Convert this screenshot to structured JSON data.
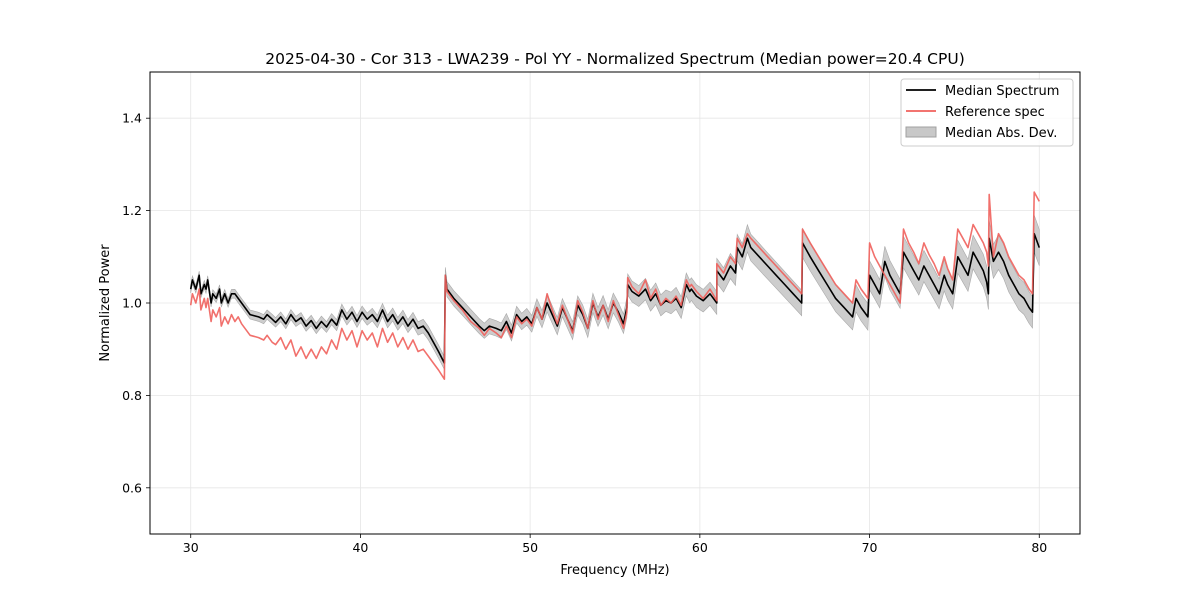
{
  "chart_data": {
    "type": "line",
    "title": "2025-04-30 - Cor 313 - LWA239 - Pol YY - Normalized Spectrum (Median power=20.4 CPU)",
    "xlabel": "Frequency (MHz)",
    "ylabel": "Normalized Power",
    "xlim": [
      27.6,
      82.4
    ],
    "ylim": [
      0.5,
      1.5
    ],
    "xticks": [
      30,
      40,
      50,
      60,
      70,
      80
    ],
    "xtick_labels": [
      "30",
      "40",
      "50",
      "60",
      "70",
      "80"
    ],
    "yticks": [
      0.6,
      0.8,
      1.0,
      1.2,
      1.4
    ],
    "ytick_labels": [
      "0.6",
      "0.8",
      "1.0",
      "1.2",
      "1.4"
    ],
    "grid": true,
    "legend": {
      "position": "top-right",
      "entries": [
        {
          "label": "Median Spectrum",
          "kind": "line",
          "color": "#000000"
        },
        {
          "label": "Reference spec",
          "kind": "line",
          "color": "#f0605c"
        },
        {
          "label": "Median Abs. Dev.",
          "kind": "patch",
          "color": "#c8c8c8"
        }
      ]
    },
    "series": [
      {
        "name": "Median Spectrum",
        "color": "#000000",
        "x": [
          30.0,
          30.1,
          30.3,
          30.5,
          30.6,
          30.8,
          30.9,
          31.0,
          31.2,
          31.3,
          31.5,
          31.7,
          31.8,
          32.0,
          32.2,
          32.4,
          32.6,
          32.8,
          33.0,
          33.5,
          34.0,
          34.3,
          34.5,
          34.8,
          35.0,
          35.3,
          35.6,
          35.9,
          36.2,
          36.5,
          36.8,
          37.1,
          37.4,
          37.7,
          38.0,
          38.3,
          38.6,
          38.9,
          39.2,
          39.5,
          39.8,
          40.1,
          40.4,
          40.7,
          41.0,
          41.3,
          41.6,
          41.9,
          42.2,
          42.5,
          42.8,
          43.1,
          43.4,
          43.7,
          44.0,
          44.3,
          44.6,
          44.95,
          45.0,
          45.1,
          45.5,
          46.0,
          46.5,
          47.0,
          47.3,
          47.6,
          48.0,
          48.3,
          48.6,
          48.9,
          49.2,
          49.5,
          49.8,
          50.1,
          50.4,
          50.7,
          51.0,
          51.3,
          51.6,
          51.9,
          52.2,
          52.5,
          52.8,
          53.1,
          53.4,
          53.7,
          54.0,
          54.3,
          54.6,
          54.9,
          55.2,
          55.5,
          55.7,
          55.75,
          56.0,
          56.4,
          56.8,
          57.1,
          57.4,
          57.7,
          58.0,
          58.3,
          58.6,
          58.9,
          59.2,
          59.4,
          59.5,
          59.8,
          60.2,
          60.6,
          61.0,
          61.0,
          61.4,
          61.8,
          62.1,
          62.2,
          62.5,
          62.8,
          63.0,
          63.5,
          64.0,
          64.5,
          65.0,
          65.5,
          66.0,
          66.05,
          66.5,
          67.0,
          67.5,
          68.0,
          68.5,
          69.0,
          69.2,
          69.5,
          69.9,
          70.0,
          70.3,
          70.6,
          70.9,
          71.2,
          71.5,
          71.8,
          72.0,
          72.3,
          72.6,
          72.9,
          73.2,
          73.5,
          73.8,
          74.1,
          74.4,
          74.6,
          74.9,
          75.2,
          75.5,
          75.8,
          76.1,
          76.4,
          76.7,
          76.9,
          77.0,
          77.05,
          77.3,
          77.6,
          77.9,
          78.2,
          78.5,
          78.8,
          79.1,
          79.4,
          79.6,
          79.7,
          80.0
        ],
        "y": [
          1.03,
          1.05,
          1.03,
          1.06,
          1.02,
          1.04,
          1.03,
          1.05,
          1.0,
          1.02,
          1.01,
          1.03,
          1.0,
          1.02,
          1.0,
          1.02,
          1.02,
          1.01,
          1.0,
          0.975,
          0.97,
          0.965,
          0.975,
          0.965,
          0.958,
          0.97,
          0.955,
          0.975,
          0.96,
          0.968,
          0.95,
          0.962,
          0.945,
          0.96,
          0.948,
          0.965,
          0.952,
          0.985,
          0.965,
          0.98,
          0.96,
          0.98,
          0.965,
          0.975,
          0.96,
          0.985,
          0.96,
          0.975,
          0.955,
          0.97,
          0.95,
          0.965,
          0.945,
          0.95,
          0.935,
          0.915,
          0.895,
          0.87,
          1.06,
          1.03,
          1.01,
          0.99,
          0.97,
          0.95,
          0.94,
          0.95,
          0.945,
          0.94,
          0.96,
          0.935,
          0.975,
          0.96,
          0.97,
          0.955,
          0.99,
          0.965,
          1.0,
          0.975,
          0.95,
          0.99,
          0.965,
          0.94,
          0.995,
          0.975,
          0.945,
          1.0,
          0.97,
          0.995,
          0.965,
          1.0,
          0.98,
          0.955,
          0.99,
          1.04,
          1.025,
          1.015,
          1.03,
          1.005,
          1.02,
          0.995,
          1.005,
          1.0,
          1.01,
          0.99,
          1.04,
          1.025,
          1.03,
          1.015,
          1.005,
          1.02,
          1.0,
          1.07,
          1.05,
          1.08,
          1.065,
          1.12,
          1.1,
          1.14,
          1.12,
          1.1,
          1.08,
          1.06,
          1.04,
          1.02,
          1.0,
          1.13,
          1.1,
          1.07,
          1.04,
          1.01,
          0.99,
          0.97,
          1.01,
          0.99,
          0.97,
          1.06,
          1.04,
          1.02,
          1.09,
          1.06,
          1.04,
          1.02,
          1.11,
          1.09,
          1.07,
          1.05,
          1.08,
          1.06,
          1.04,
          1.02,
          1.06,
          1.04,
          1.02,
          1.1,
          1.08,
          1.06,
          1.11,
          1.09,
          1.07,
          1.045,
          1.02,
          1.14,
          1.09,
          1.11,
          1.09,
          1.06,
          1.04,
          1.02,
          1.01,
          0.99,
          0.98,
          1.15,
          1.12
        ]
      },
      {
        "name": "Reference spec",
        "color": "#f0605c",
        "x": [
          30.0,
          30.1,
          30.3,
          30.5,
          30.6,
          30.8,
          30.9,
          31.0,
          31.2,
          31.3,
          31.5,
          31.7,
          31.8,
          32.0,
          32.2,
          32.4,
          32.6,
          32.8,
          33.0,
          33.5,
          34.0,
          34.3,
          34.5,
          34.8,
          35.0,
          35.3,
          35.6,
          35.9,
          36.2,
          36.5,
          36.8,
          37.1,
          37.4,
          37.7,
          38.0,
          38.3,
          38.6,
          38.9,
          39.2,
          39.5,
          39.8,
          40.1,
          40.4,
          40.7,
          41.0,
          41.3,
          41.6,
          41.9,
          42.2,
          42.5,
          42.8,
          43.1,
          43.4,
          43.7,
          44.0,
          44.3,
          44.6,
          44.95,
          45.0,
          45.1,
          45.5,
          46.0,
          46.5,
          47.0,
          47.3,
          47.6,
          48.0,
          48.3,
          48.6,
          48.9,
          49.2,
          49.5,
          49.8,
          50.1,
          50.4,
          50.7,
          51.0,
          51.3,
          51.6,
          51.9,
          52.2,
          52.5,
          52.8,
          53.1,
          53.4,
          53.7,
          54.0,
          54.3,
          54.6,
          54.9,
          55.2,
          55.5,
          55.7,
          55.75,
          56.0,
          56.4,
          56.8,
          57.1,
          57.4,
          57.7,
          58.0,
          58.3,
          58.6,
          58.9,
          59.2,
          59.4,
          59.5,
          59.8,
          60.2,
          60.6,
          61.0,
          61.0,
          61.4,
          61.8,
          62.1,
          62.2,
          62.5,
          62.8,
          63.0,
          63.5,
          64.0,
          64.5,
          65.0,
          65.5,
          66.0,
          66.05,
          66.5,
          67.0,
          67.5,
          68.0,
          68.5,
          69.0,
          69.2,
          69.5,
          69.9,
          70.0,
          70.3,
          70.6,
          70.9,
          71.2,
          71.5,
          71.8,
          72.0,
          72.3,
          72.6,
          72.9,
          73.2,
          73.5,
          73.8,
          74.1,
          74.4,
          74.6,
          74.9,
          75.2,
          75.5,
          75.8,
          76.1,
          76.4,
          76.7,
          76.9,
          77.0,
          77.05,
          77.3,
          77.6,
          77.9,
          78.2,
          78.5,
          78.8,
          79.1,
          79.4,
          79.6,
          79.7,
          80.0
        ],
        "y": [
          0.995,
          1.02,
          1.0,
          1.03,
          0.985,
          1.01,
          0.99,
          1.01,
          0.96,
          0.985,
          0.97,
          0.99,
          0.95,
          0.97,
          0.955,
          0.975,
          0.96,
          0.97,
          0.955,
          0.93,
          0.925,
          0.92,
          0.93,
          0.915,
          0.91,
          0.925,
          0.9,
          0.92,
          0.885,
          0.905,
          0.88,
          0.9,
          0.88,
          0.905,
          0.89,
          0.92,
          0.9,
          0.945,
          0.92,
          0.94,
          0.905,
          0.94,
          0.92,
          0.935,
          0.905,
          0.945,
          0.915,
          0.935,
          0.905,
          0.925,
          0.9,
          0.92,
          0.895,
          0.9,
          0.885,
          0.87,
          0.855,
          0.835,
          1.06,
          1.025,
          1.005,
          0.985,
          0.96,
          0.945,
          0.93,
          0.945,
          0.935,
          0.925,
          0.95,
          0.925,
          0.97,
          0.955,
          0.965,
          0.95,
          0.99,
          0.965,
          1.02,
          0.985,
          0.955,
          0.995,
          0.965,
          0.935,
          1.005,
          0.98,
          0.945,
          1.005,
          0.965,
          0.995,
          0.96,
          1.005,
          0.975,
          0.945,
          0.98,
          1.055,
          1.035,
          1.02,
          1.05,
          1.01,
          1.03,
          0.995,
          1.01,
          1.0,
          1.015,
          0.995,
          1.05,
          1.035,
          1.04,
          1.025,
          1.01,
          1.03,
          1.005,
          1.085,
          1.065,
          1.1,
          1.085,
          1.14,
          1.12,
          1.15,
          1.14,
          1.12,
          1.1,
          1.08,
          1.06,
          1.04,
          1.02,
          1.16,
          1.13,
          1.1,
          1.07,
          1.04,
          1.02,
          1.0,
          1.05,
          1.03,
          1.01,
          1.13,
          1.1,
          1.08,
          1.06,
          1.04,
          1.02,
          1.0,
          1.16,
          1.13,
          1.11,
          1.085,
          1.13,
          1.105,
          1.085,
          1.06,
          1.1,
          1.075,
          1.05,
          1.16,
          1.14,
          1.12,
          1.17,
          1.15,
          1.13,
          1.11,
          1.08,
          1.235,
          1.1,
          1.15,
          1.13,
          1.1,
          1.08,
          1.06,
          1.05,
          1.03,
          1.02,
          1.24,
          1.22
        ]
      }
    ],
    "band": {
      "name": "Median Abs. Dev.",
      "color": "#c8c8c8",
      "relative_halfwidth_start": 0.008,
      "relative_halfwidth_end": 0.035
    }
  }
}
